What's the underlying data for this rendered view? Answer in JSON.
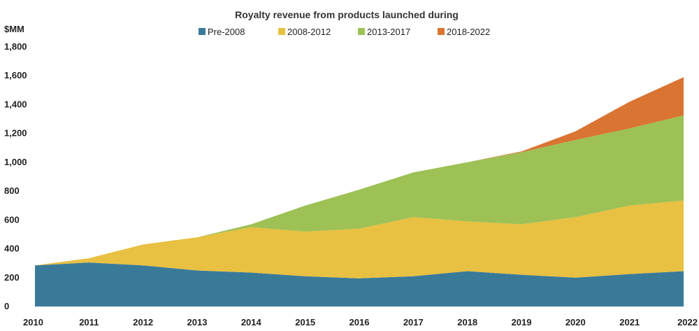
{
  "chart_data": {
    "type": "area",
    "stacked": true,
    "title": "Royalty revenue from products launched during",
    "ylabel": "$MM",
    "xlabel": "",
    "x": [
      "2010",
      "2011",
      "2012",
      "2013",
      "2014",
      "2015",
      "2016",
      "2017",
      "2018",
      "2019",
      "2020",
      "2021",
      "2022"
    ],
    "ylim": [
      0,
      1800
    ],
    "yticks": [
      "0",
      "200",
      "400",
      "600",
      "800",
      "1,000",
      "1,200",
      "1,400",
      "1,600",
      "1,800"
    ],
    "legend_position": "top-center",
    "grid": false,
    "series": [
      {
        "name": "Pre-2008",
        "color": "#3a7a99",
        "values": [
          285,
          305,
          285,
          250,
          235,
          210,
          195,
          210,
          245,
          220,
          200,
          225,
          245
        ]
      },
      {
        "name": "2008-2012",
        "color": "#e8c042",
        "values": [
          0,
          30,
          145,
          230,
          315,
          310,
          345,
          410,
          345,
          350,
          420,
          475,
          490
        ]
      },
      {
        "name": "2013-2017",
        "color": "#9dc155",
        "values": [
          0,
          0,
          0,
          0,
          20,
          180,
          270,
          310,
          410,
          500,
          535,
          535,
          590
        ]
      },
      {
        "name": "2018-2022",
        "color": "#da7433",
        "values": [
          0,
          0,
          0,
          0,
          0,
          0,
          0,
          0,
          0,
          5,
          60,
          185,
          265
        ]
      }
    ]
  }
}
